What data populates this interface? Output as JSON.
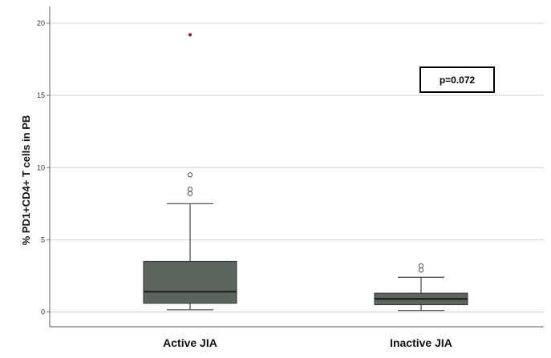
{
  "chart_data": {
    "type": "box",
    "ylabel": "% PD1+CD4+ T cells in PB",
    "ylim": [
      -1,
      21
    ],
    "yticks": [
      0,
      5,
      10,
      15,
      20
    ],
    "grid": true,
    "categories": [
      "Active JIA",
      "Inactive JIA"
    ],
    "boxes": [
      {
        "category": "Active JIA",
        "whisker_low": 0.15,
        "q1": 0.6,
        "median": 1.4,
        "q3": 3.5,
        "whisker_high": 7.5,
        "outliers": [
          8.2,
          8.5,
          9.5
        ],
        "extremes": [
          19.2
        ]
      },
      {
        "category": "Inactive JIA",
        "whisker_low": 0.1,
        "q1": 0.5,
        "median": 0.9,
        "q3": 1.3,
        "whisker_high": 2.4,
        "outliers": [
          2.9,
          3.2
        ],
        "extremes": []
      }
    ],
    "annotation": "p=0.072"
  },
  "colors": {
    "box_fill": "#5b645f",
    "grid": "#d9d9d9",
    "extreme": "#8b1a2b"
  }
}
